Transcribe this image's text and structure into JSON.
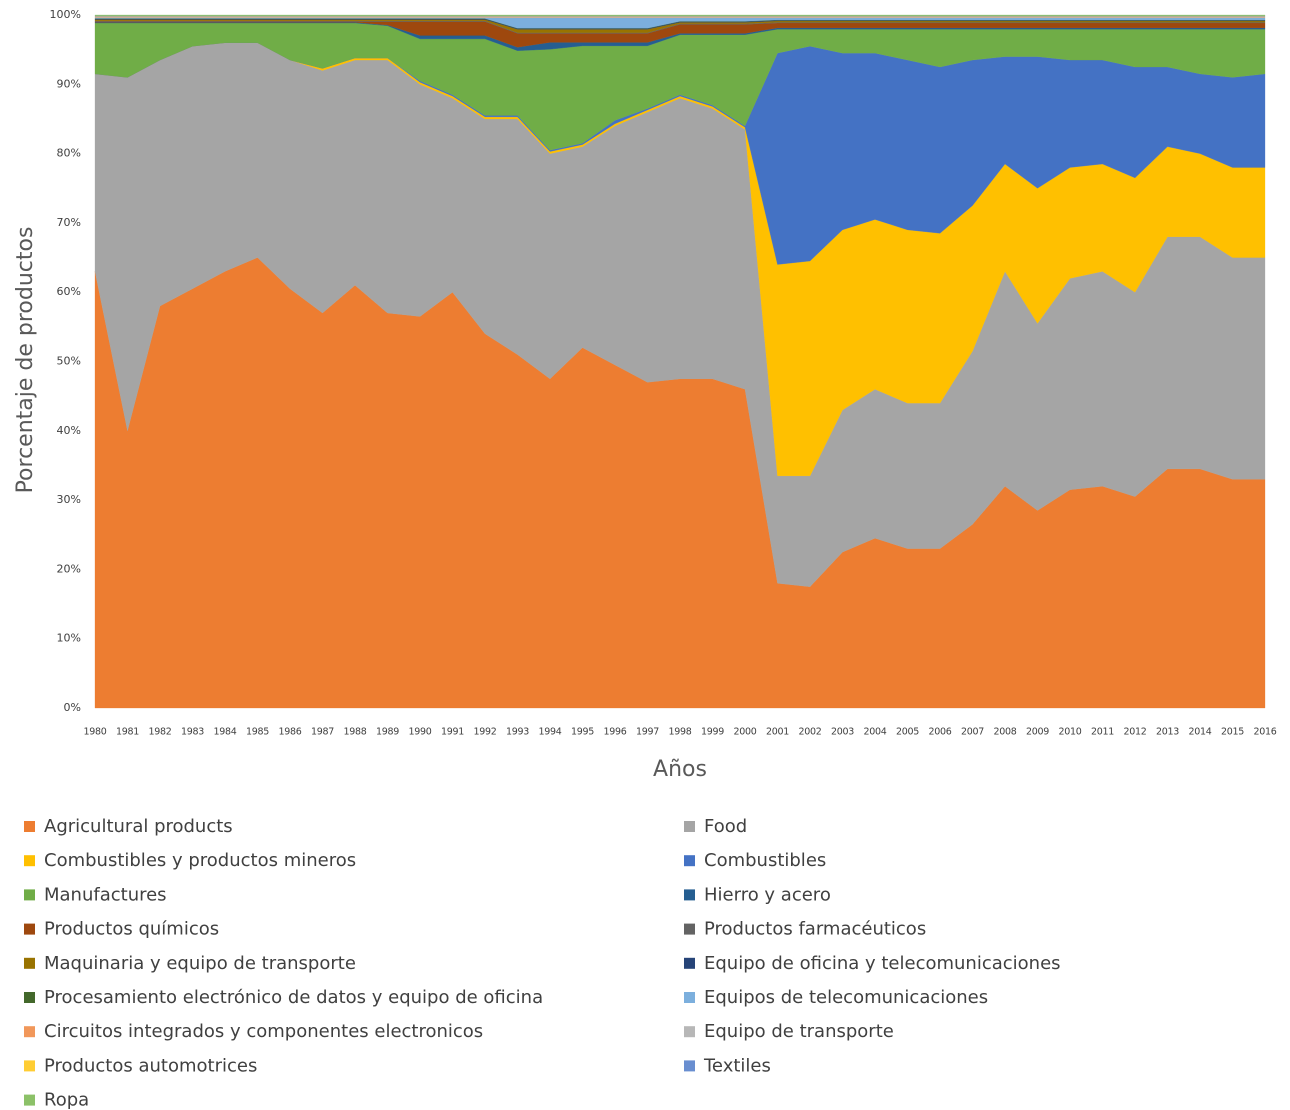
{
  "chart_data": {
    "type": "stacked_area",
    "y_label": "Porcentaje de productos",
    "x_label": "Años",
    "categories": [
      "1980",
      "1981",
      "1982",
      "1983",
      "1984",
      "1985",
      "1986",
      "1987",
      "1988",
      "1989",
      "1990",
      "1991",
      "1992",
      "1993",
      "1994",
      "1995",
      "1996",
      "1997",
      "1998",
      "1999",
      "2000",
      "2001",
      "2002",
      "2003",
      "2004",
      "2005",
      "2006",
      "2007",
      "2008",
      "2009",
      "2010",
      "2011",
      "2012",
      "2013",
      "2014",
      "2015",
      "2016"
    ],
    "ylim": [
      0,
      100
    ],
    "yticks": [
      {
        "value": 0,
        "label": "0%"
      },
      {
        "value": 10,
        "label": "10%"
      },
      {
        "value": 20,
        "label": "20%"
      },
      {
        "value": 30,
        "label": "30%"
      },
      {
        "value": 40,
        "label": "40%"
      },
      {
        "value": 50,
        "label": "50%"
      },
      {
        "value": 60,
        "label": "60%"
      },
      {
        "value": 70,
        "label": "70%"
      },
      {
        "value": 80,
        "label": "80%"
      },
      {
        "value": 90,
        "label": "90%"
      },
      {
        "value": 100,
        "label": "100%"
      }
    ],
    "grid": false,
    "legend": "bottom",
    "series": [
      {
        "name": "Agricultural products",
        "color": "#ed7d31",
        "values": [
          63,
          40,
          58,
          60.5,
          63,
          65,
          60.5,
          57,
          61,
          57,
          56.5,
          60,
          54,
          51,
          47.5,
          52,
          49.5,
          47,
          47.5,
          47.5,
          46,
          18,
          17.5,
          22.5,
          24.5,
          23,
          23,
          26.5,
          32,
          28.5,
          31.5,
          32,
          30.5,
          34.5,
          34.5,
          33,
          33
        ]
      },
      {
        "name": "Food",
        "color": "#a5a5a5",
        "values": [
          28.5,
          51,
          35.5,
          35,
          33,
          31,
          33,
          35,
          32.5,
          36.5,
          33.5,
          28,
          31,
          34,
          32.5,
          29,
          34.5,
          39,
          40.5,
          39,
          37.5,
          15.5,
          16,
          20.5,
          21.5,
          21,
          21,
          25,
          31,
          27,
          30.5,
          31,
          29.5,
          33.5,
          33.5,
          32,
          32
        ]
      },
      {
        "name": "Combustibles y productos mineros",
        "color": "#ffc000",
        "values": [
          0,
          0,
          0,
          0,
          0,
          0,
          0,
          0.3,
          0.3,
          0.3,
          0.3,
          0.3,
          0.3,
          0.3,
          0.3,
          0.3,
          0.3,
          0.3,
          0.3,
          0.3,
          0.3,
          30.5,
          31,
          26,
          24.5,
          25,
          24.5,
          21,
          15.5,
          19.5,
          16,
          15.5,
          16.5,
          13,
          12,
          13,
          13
        ]
      },
      {
        "name": "Combustibles",
        "color": "#4472c4",
        "values": [
          0,
          0,
          0,
          0,
          0,
          0,
          0,
          0,
          0,
          0,
          0.2,
          0.2,
          0.2,
          0.2,
          0.2,
          0.2,
          0.5,
          0.2,
          0.2,
          0.2,
          0.2,
          30.5,
          31,
          25.5,
          24,
          24.5,
          24,
          21,
          15.5,
          19,
          15.5,
          15,
          16,
          11.5,
          11.5,
          13,
          13.5
        ]
      },
      {
        "name": "Manufactures",
        "color": "#70ad47",
        "values": [
          7.35,
          7.85,
          5.35,
          3.35,
          2.85,
          2.85,
          5.35,
          6.55,
          5.05,
          4.65,
          6.05,
          8.05,
          11.05,
          9.35,
          14.55,
          14.05,
          10.75,
          9.05,
          8.65,
          10.15,
          13.15,
          3.45,
          2.45,
          3.45,
          3.45,
          4.45,
          5.45,
          4.45,
          3.95,
          3.95,
          4.45,
          4.45,
          5.45,
          5.45,
          6.45,
          6.95,
          6.45
        ]
      },
      {
        "name": "Hierro y acero",
        "color": "#255e91",
        "values": [
          0.1,
          0.1,
          0.1,
          0.1,
          0.1,
          0.1,
          0.1,
          0.1,
          0.1,
          0.1,
          0.5,
          0.5,
          0.5,
          0.5,
          1,
          0.5,
          0.5,
          0.5,
          0.2,
          0.2,
          0.2,
          0.2,
          0.2,
          0.2,
          0.2,
          0.2,
          0.2,
          0.2,
          0.2,
          0.2,
          0.2,
          0.2,
          0.2,
          0.2,
          0.2,
          0.2,
          0.2
        ]
      },
      {
        "name": "Productos químicos",
        "color": "#9e480e",
        "values": [
          0.1,
          0.1,
          0.1,
          0.1,
          0.1,
          0.1,
          0.1,
          0.1,
          0.1,
          0.5,
          2,
          2,
          2,
          2,
          1.3,
          1.3,
          1.3,
          1.3,
          1.3,
          1.3,
          1.3,
          0.7,
          0.7,
          0.7,
          0.7,
          0.7,
          0.7,
          0.7,
          0.7,
          0.7,
          0.7,
          0.7,
          0.7,
          0.7,
          0.7,
          0.7,
          0.7
        ]
      },
      {
        "name": "Productos farmacéuticos",
        "color": "#636363",
        "values": [
          0.1,
          0.1,
          0.1,
          0.1,
          0.1,
          0.1,
          0.1,
          0.1,
          0.1,
          0.1,
          0.1,
          0.1,
          0.1,
          0.1,
          0.1,
          0.1,
          0.1,
          0.1,
          0.1,
          0.1,
          0.1,
          0.1,
          0.1,
          0.1,
          0.1,
          0.1,
          0.1,
          0.1,
          0.1,
          0.1,
          0.1,
          0.1,
          0.1,
          0.1,
          0.1,
          0.1,
          0.1
        ]
      },
      {
        "name": "Maquinaria y equipo de transporte",
        "color": "#997300",
        "values": [
          0.2,
          0.2,
          0.2,
          0.2,
          0.2,
          0.2,
          0.2,
          0.2,
          0.2,
          0.2,
          0.2,
          0.2,
          0.2,
          0.5,
          0.5,
          0.5,
          0.5,
          0.5,
          0.2,
          0.2,
          0.2,
          0.2,
          0.2,
          0.2,
          0.2,
          0.2,
          0.2,
          0.2,
          0.2,
          0.2,
          0.2,
          0.2,
          0.2,
          0.2,
          0.2,
          0.2,
          0.2
        ]
      },
      {
        "name": "Equipo de oficina y telecomunicaciones",
        "color": "#264478",
        "values": [
          0.1,
          0.1,
          0.1,
          0.1,
          0.1,
          0.1,
          0.1,
          0.1,
          0.1,
          0.1,
          0.1,
          0.1,
          0.1,
          0.1,
          0.1,
          0.1,
          0.1,
          0.1,
          0.1,
          0.1,
          0.1,
          0.1,
          0.1,
          0.1,
          0.1,
          0.1,
          0.1,
          0.1,
          0.1,
          0.1,
          0.1,
          0.1,
          0.1,
          0.1,
          0.1,
          0.1,
          0.1
        ]
      },
      {
        "name": "Procesamiento electrónico de datos y equipo de oficina",
        "color": "#43682b",
        "values": [
          0.05,
          0.05,
          0.05,
          0.05,
          0.05,
          0.05,
          0.05,
          0.05,
          0.05,
          0.05,
          0.05,
          0.05,
          0.05,
          0.05,
          0.05,
          0.05,
          0.05,
          0.05,
          0.05,
          0.05,
          0.05,
          0.05,
          0.05,
          0.05,
          0.05,
          0.05,
          0.05,
          0.05,
          0.05,
          0.05,
          0.05,
          0.05,
          0.05,
          0.05,
          0.05,
          0.05,
          0.05
        ]
      },
      {
        "name": "Equipos de telecomunicaciones",
        "color": "#7cafdd",
        "values": [
          0.1,
          0.1,
          0.1,
          0.1,
          0.1,
          0.1,
          0.1,
          0.1,
          0.1,
          0.1,
          0.1,
          0.1,
          0.1,
          1.5,
          1.5,
          1.5,
          1.5,
          1.5,
          0.5,
          0.5,
          0.5,
          0.3,
          0.3,
          0.3,
          0.3,
          0.3,
          0.3,
          0.3,
          0.3,
          0.3,
          0.3,
          0.3,
          0.3,
          0.3,
          0.3,
          0.3,
          0.3
        ]
      },
      {
        "name": "Circuitos integrados y componentes electronicos",
        "color": "#f1975a",
        "values": [
          0.05,
          0.05,
          0.05,
          0.05,
          0.05,
          0.05,
          0.05,
          0.05,
          0.05,
          0.05,
          0.05,
          0.05,
          0.05,
          0.05,
          0.05,
          0.05,
          0.05,
          0.05,
          0.05,
          0.05,
          0.05,
          0.05,
          0.05,
          0.05,
          0.05,
          0.05,
          0.05,
          0.05,
          0.05,
          0.05,
          0.05,
          0.05,
          0.05,
          0.05,
          0.05,
          0.05,
          0.05
        ]
      },
      {
        "name": "Equipo de transporte",
        "color": "#b7b7b7",
        "values": [
          0.1,
          0.1,
          0.1,
          0.1,
          0.1,
          0.1,
          0.1,
          0.1,
          0.1,
          0.1,
          0.1,
          0.1,
          0.1,
          0.1,
          0.1,
          0.1,
          0.1,
          0.1,
          0.1,
          0.1,
          0.1,
          0.1,
          0.1,
          0.1,
          0.1,
          0.1,
          0.1,
          0.1,
          0.1,
          0.1,
          0.1,
          0.1,
          0.1,
          0.1,
          0.1,
          0.1,
          0.1
        ]
      },
      {
        "name": "Productos automotrices",
        "color": "#ffcd33",
        "values": [
          0.05,
          0.05,
          0.05,
          0.05,
          0.05,
          0.05,
          0.05,
          0.05,
          0.05,
          0.05,
          0.05,
          0.05,
          0.05,
          0.05,
          0.05,
          0.05,
          0.05,
          0.05,
          0.05,
          0.05,
          0.05,
          0.05,
          0.05,
          0.05,
          0.05,
          0.05,
          0.05,
          0.05,
          0.05,
          0.05,
          0.05,
          0.05,
          0.05,
          0.05,
          0.05,
          0.05,
          0.05
        ]
      },
      {
        "name": "Textiles",
        "color": "#698ed0",
        "values": [
          0.1,
          0.1,
          0.1,
          0.1,
          0.1,
          0.1,
          0.1,
          0.1,
          0.1,
          0.1,
          0.1,
          0.1,
          0.1,
          0.1,
          0.1,
          0.1,
          0.1,
          0.1,
          0.1,
          0.1,
          0.1,
          0.1,
          0.1,
          0.1,
          0.1,
          0.1,
          0.1,
          0.1,
          0.1,
          0.1,
          0.1,
          0.1,
          0.1,
          0.1,
          0.1,
          0.1,
          0.1
        ]
      },
      {
        "name": "Ropa",
        "color": "#8cc168",
        "values": [
          0.1,
          0.1,
          0.1,
          0.1,
          0.1,
          0.1,
          0.1,
          0.1,
          0.1,
          0.1,
          0.1,
          0.1,
          0.1,
          0.1,
          0.1,
          0.1,
          0.1,
          0.1,
          0.1,
          0.1,
          0.1,
          0.1,
          0.1,
          0.1,
          0.1,
          0.1,
          0.1,
          0.1,
          0.1,
          0.1,
          0.1,
          0.1,
          0.1,
          0.1,
          0.1,
          0.1,
          0.1
        ]
      }
    ]
  }
}
